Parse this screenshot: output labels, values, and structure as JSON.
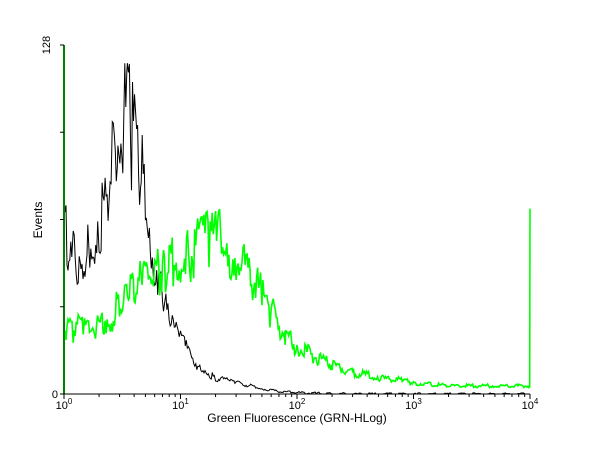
{
  "chart_data": {
    "type": "line",
    "xlabel": "Green Fluorescence (GRN-HLog)",
    "ylabel": "Events",
    "x_scale": "log",
    "xlim": [
      1,
      10000
    ],
    "ylim": [
      0,
      128
    ],
    "x_ticks": [
      {
        "value": 1,
        "base": "10",
        "exp": "0"
      },
      {
        "value": 10,
        "base": "10",
        "exp": "1"
      },
      {
        "value": 100,
        "base": "10",
        "exp": "2"
      },
      {
        "value": 1000,
        "base": "10",
        "exp": "3"
      },
      {
        "value": 10000,
        "base": "10",
        "exp": "4"
      }
    ],
    "y_tick_labels": [
      "0",
      "128"
    ],
    "y_ticks": [
      0,
      32,
      64,
      96,
      128
    ],
    "grid": false,
    "legend": false,
    "series": [
      {
        "color": "#000000",
        "x": [
          1.0,
          1.1,
          1.2,
          1.4,
          1.6,
          1.8,
          2.0,
          2.3,
          2.6,
          2.9,
          3.2,
          3.5,
          3.8,
          4.2,
          4.6,
          5.0,
          5.5,
          6.0,
          6.5,
          7.0,
          7.5,
          8.0,
          8.5,
          9.0,
          10,
          11,
          12,
          13,
          15,
          17,
          20,
          25,
          30,
          40,
          50,
          70,
          100,
          200,
          10000
        ],
        "values": [
          70,
          48,
          50,
          52,
          56,
          60,
          64,
          72,
          82,
          92,
          100,
          107,
          95,
          90,
          84,
          72,
          60,
          50,
          42,
          36,
          32,
          28,
          25,
          24,
          20,
          17,
          14,
          12,
          10,
          8,
          6,
          5,
          4,
          3,
          2,
          1,
          0.5,
          0,
          0
        ]
      },
      {
        "color": "#00ff00",
        "x": [
          1.0,
          1.2,
          1.5,
          2.0,
          2.5,
          3.0,
          3.5,
          4.0,
          5.0,
          6.0,
          7.0,
          8.0,
          9.0,
          10,
          12,
          15,
          18,
          20,
          25,
          30,
          40,
          50,
          60,
          80,
          100,
          150,
          200,
          300,
          500,
          800,
          1000,
          2000,
          5000,
          9950,
          10000
        ],
        "values": [
          25,
          24,
          24,
          26,
          28,
          33,
          36,
          40,
          40,
          43,
          45,
          48,
          49,
          51,
          52,
          55,
          56,
          56,
          55,
          52,
          44,
          36,
          30,
          22,
          17,
          13,
          11,
          8,
          6,
          5,
          4,
          3,
          3,
          3,
          68
        ]
      }
    ]
  }
}
